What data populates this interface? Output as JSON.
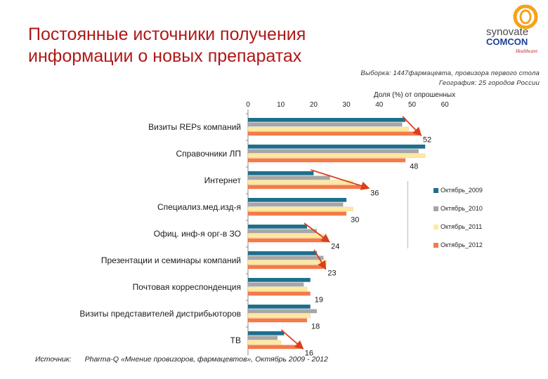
{
  "header": {
    "title_line1": "Постоянные источники получения",
    "title_line2": "информации о новых препаратах"
  },
  "logo": {
    "line1": "synovate",
    "line2": "COMCON",
    "line3": "Healthcare"
  },
  "sample": {
    "line1": "Выборка: 1447фармацевта, провизора первого стола",
    "line2": "География: 25 городов  России"
  },
  "source": {
    "label": "Источник:",
    "text": "Pharma-Q «Мнение провизоров, фармацевтов», Октябрь 2009 - 2012"
  },
  "colors": {
    "s2009": "#1f6f8b",
    "s2010": "#a6a6a6",
    "s2011": "#ffe9a0",
    "s2012": "#f47a4a",
    "arrow": "#d9401c",
    "title": "#b01818"
  },
  "chart_data": {
    "type": "bar",
    "orientation": "horizontal",
    "xlabel": "Доля (%) от опрошенных",
    "xlim": [
      0,
      60
    ],
    "xticks": [
      0,
      10,
      20,
      30,
      40,
      50,
      60
    ],
    "categories": [
      "Визиты REPs компаний",
      "Справочники ЛП",
      "Интернет",
      "Специализ.мед.изд-я",
      "Офиц. инф-я орг-в ЗО",
      "Презентации и семинары компаний",
      "Почтовая корреспонденция",
      "Визиты представителей дистрибьюторов",
      "ТВ"
    ],
    "series": [
      {
        "name": "Октябрь_2009",
        "values": [
          48,
          54,
          20,
          30,
          18,
          21,
          19,
          19,
          11
        ]
      },
      {
        "name": "Октябрь_2010",
        "values": [
          47,
          52,
          25,
          29,
          21,
          23,
          17,
          21,
          9
        ]
      },
      {
        "name": "Октябрь_2011",
        "values": [
          49,
          54,
          32,
          32,
          23,
          24,
          18,
          19,
          10
        ]
      },
      {
        "name": "Октябрь_2012",
        "values": [
          52,
          48,
          36,
          30,
          24,
          23,
          19,
          18,
          16
        ]
      }
    ],
    "data_labels": [
      "52",
      "48",
      "36",
      "30",
      "24",
      "23",
      "19",
      "18",
      "16"
    ],
    "legend_position": "right",
    "grid": false
  }
}
